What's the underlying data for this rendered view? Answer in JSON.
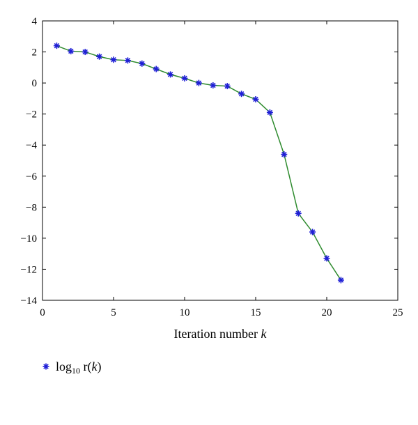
{
  "chart_data": {
    "type": "line",
    "xlabel_text": "Iteration number ",
    "xlabel_var": "k",
    "ylabel": "",
    "xlim": [
      0,
      25
    ],
    "ylim": [
      -14,
      4
    ],
    "xticks": [
      0,
      5,
      10,
      15,
      20,
      25
    ],
    "yticks": [
      4,
      2,
      0,
      -2,
      -4,
      -6,
      -8,
      -10,
      -12,
      -14
    ],
    "grid": false,
    "legend_position": "bottom-left",
    "series": [
      {
        "name": "log10 r(k)",
        "legend_base": "log",
        "legend_sub": "10",
        "legend_rest": " r(",
        "legend_var": "k",
        "legend_close": ")",
        "line_color": "#2e8b2e",
        "marker_color": "#1f1fd6",
        "marker": "asterisk",
        "x": [
          1,
          2,
          3,
          4,
          5,
          6,
          7,
          8,
          9,
          10,
          11,
          12,
          13,
          14,
          15,
          16,
          17,
          18,
          19,
          20,
          21
        ],
        "values": [
          2.4,
          2.05,
          2.0,
          1.7,
          1.5,
          1.45,
          1.25,
          0.9,
          0.55,
          0.3,
          0.0,
          -0.15,
          -0.2,
          -0.7,
          -1.05,
          -1.9,
          -4.6,
          -8.4,
          -9.6,
          -11.3,
          -12.7
        ]
      }
    ]
  }
}
